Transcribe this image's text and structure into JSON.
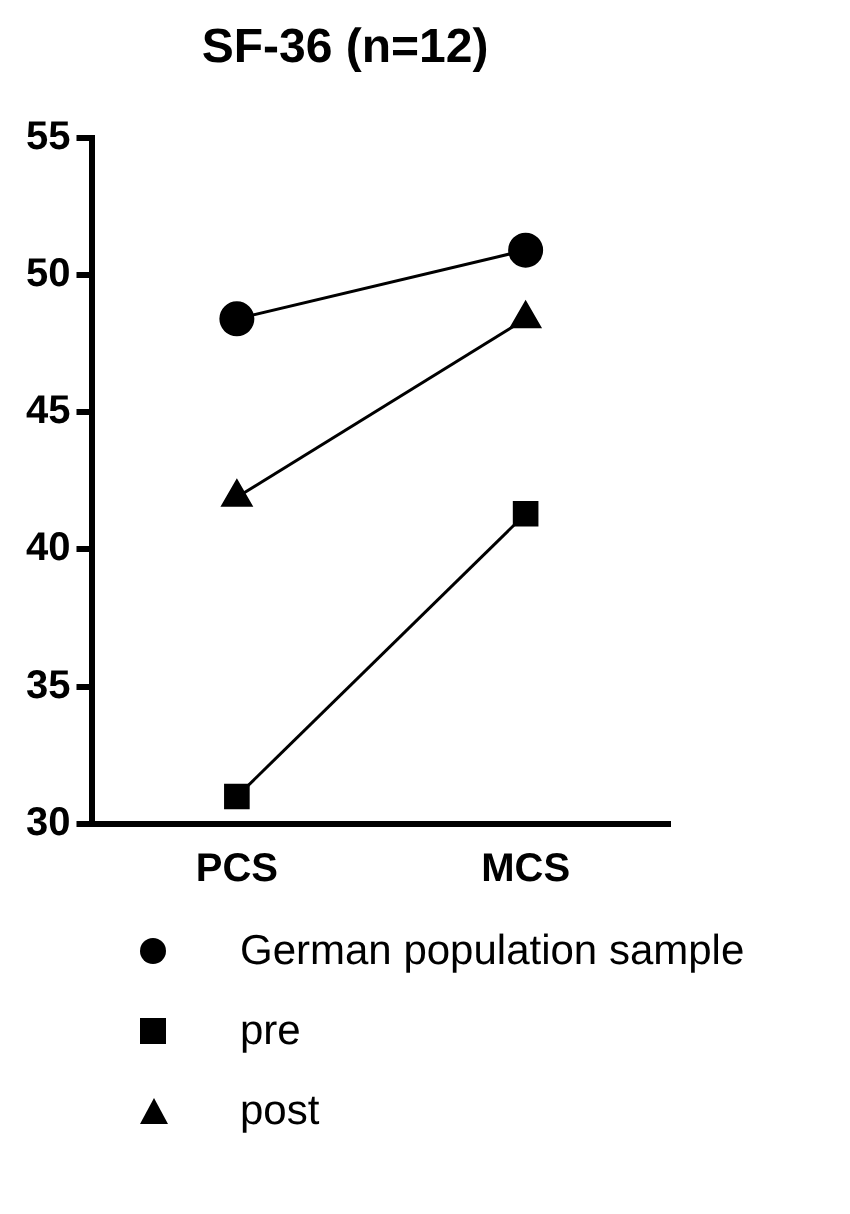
{
  "chart_data": {
    "type": "line",
    "title": "SF-36 (n=12)",
    "categories": [
      "PCS",
      "MCS"
    ],
    "series": [
      {
        "name": "German population sample",
        "color": "#000000",
        "marker": "circle",
        "values": [
          48.4,
          50.9
        ]
      },
      {
        "name": "pre",
        "color": "#000000",
        "marker": "square",
        "values": [
          31.0,
          41.3
        ]
      },
      {
        "name": "post",
        "color": "#000000",
        "marker": "triangle",
        "values": [
          41.9,
          48.4
        ]
      }
    ],
    "ylim": [
      30,
      55
    ],
    "yticks": [
      30,
      35,
      40,
      45,
      50,
      55
    ],
    "grid": false,
    "legend": "bottom",
    "line_style": "solid"
  }
}
